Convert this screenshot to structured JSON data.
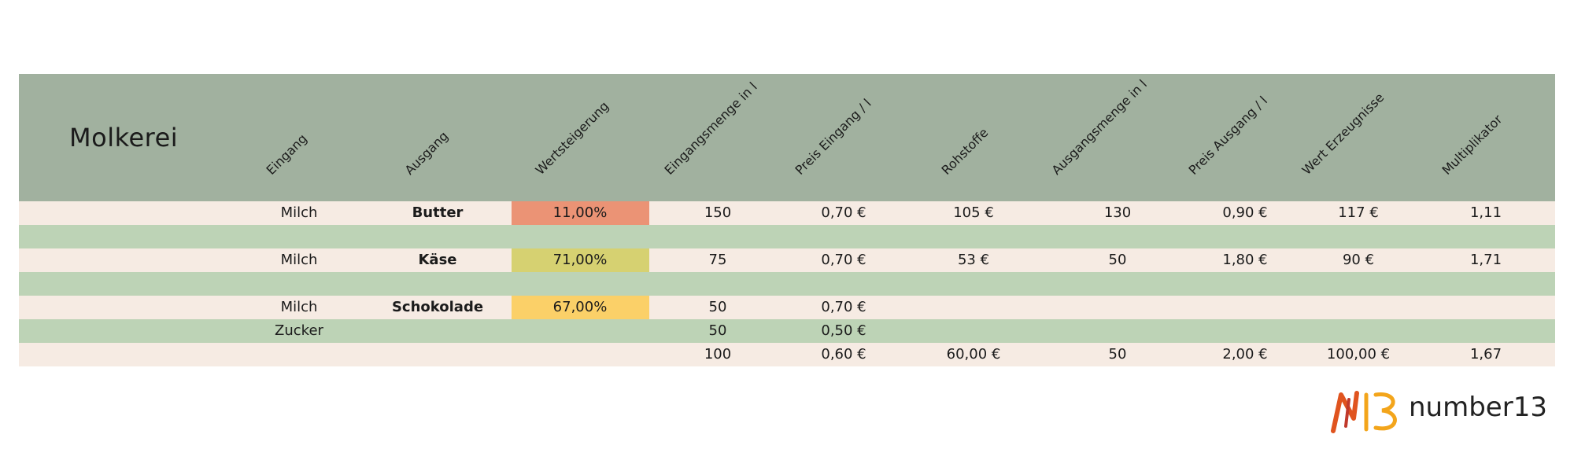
{
  "table": {
    "title": "Molkerei",
    "headers": [
      "Eingang",
      "Ausgang",
      "Wertsteigerung",
      "Eingangsmenge in l",
      "Preis Eingang / l",
      "Rohstoffe",
      "Ausgangsmenge in l",
      "Preis Ausgang / l",
      "Wert Erzeugnisse",
      "Multiplikator"
    ],
    "rows": [
      {
        "style": "cream",
        "eingang": "Milch",
        "ausgang": "Butter",
        "wertsteigerung": "11,00%",
        "wert_color": "#eb9375",
        "eingangsmenge": "150",
        "preis_eingang": "0,70 €",
        "rohstoffe": "105 €",
        "ausgangsmenge": "130",
        "preis_ausgang": "0,90 €",
        "wert_erzeugnisse": "117 €",
        "multiplikator": "1,11"
      },
      {
        "style": "green",
        "eingang": "",
        "ausgang": "",
        "wertsteigerung": "",
        "wert_color": "",
        "eingangsmenge": "",
        "preis_eingang": "",
        "rohstoffe": "",
        "ausgangsmenge": "",
        "preis_ausgang": "",
        "wert_erzeugnisse": "",
        "multiplikator": ""
      },
      {
        "style": "cream",
        "eingang": "Milch",
        "ausgang": "Käse",
        "wertsteigerung": "71,00%",
        "wert_color": "#d6d171",
        "eingangsmenge": "75",
        "preis_eingang": "0,70 €",
        "rohstoffe": "53 €",
        "ausgangsmenge": "50",
        "preis_ausgang": "1,80 €",
        "wert_erzeugnisse": "90 €",
        "multiplikator": "1,71"
      },
      {
        "style": "green",
        "eingang": "",
        "ausgang": "",
        "wertsteigerung": "",
        "wert_color": "",
        "eingangsmenge": "",
        "preis_eingang": "",
        "rohstoffe": "",
        "ausgangsmenge": "",
        "preis_ausgang": "",
        "wert_erzeugnisse": "",
        "multiplikator": ""
      },
      {
        "style": "cream",
        "eingang": "Milch",
        "ausgang": "Schokolade",
        "wertsteigerung": "67,00%",
        "wert_color": "#fbd068",
        "eingangsmenge": "50",
        "preis_eingang": "0,70 €",
        "rohstoffe": "",
        "ausgangsmenge": "",
        "preis_ausgang": "",
        "wert_erzeugnisse": "",
        "multiplikator": ""
      },
      {
        "style": "green",
        "eingang": "Zucker",
        "ausgang": "",
        "wertsteigerung": "",
        "wert_color": "",
        "eingangsmenge": "50",
        "preis_eingang": "0,50 €",
        "rohstoffe": "",
        "ausgangsmenge": "",
        "preis_ausgang": "",
        "wert_erzeugnisse": "",
        "multiplikator": ""
      },
      {
        "style": "cream",
        "eingang": "",
        "ausgang": "",
        "wertsteigerung": "",
        "wert_color": "",
        "eingangsmenge": "100",
        "preis_eingang": "0,60 €",
        "rohstoffe": "60,00 €",
        "ausgangsmenge": "50",
        "preis_ausgang": "2,00 €",
        "wert_erzeugnisse": "100,00 €",
        "multiplikator": "1,67"
      }
    ]
  },
  "logo": {
    "text": "number13",
    "mark_text": "N13",
    "colors": [
      "#e0541f",
      "#f3a51b",
      "#c0392b"
    ]
  }
}
